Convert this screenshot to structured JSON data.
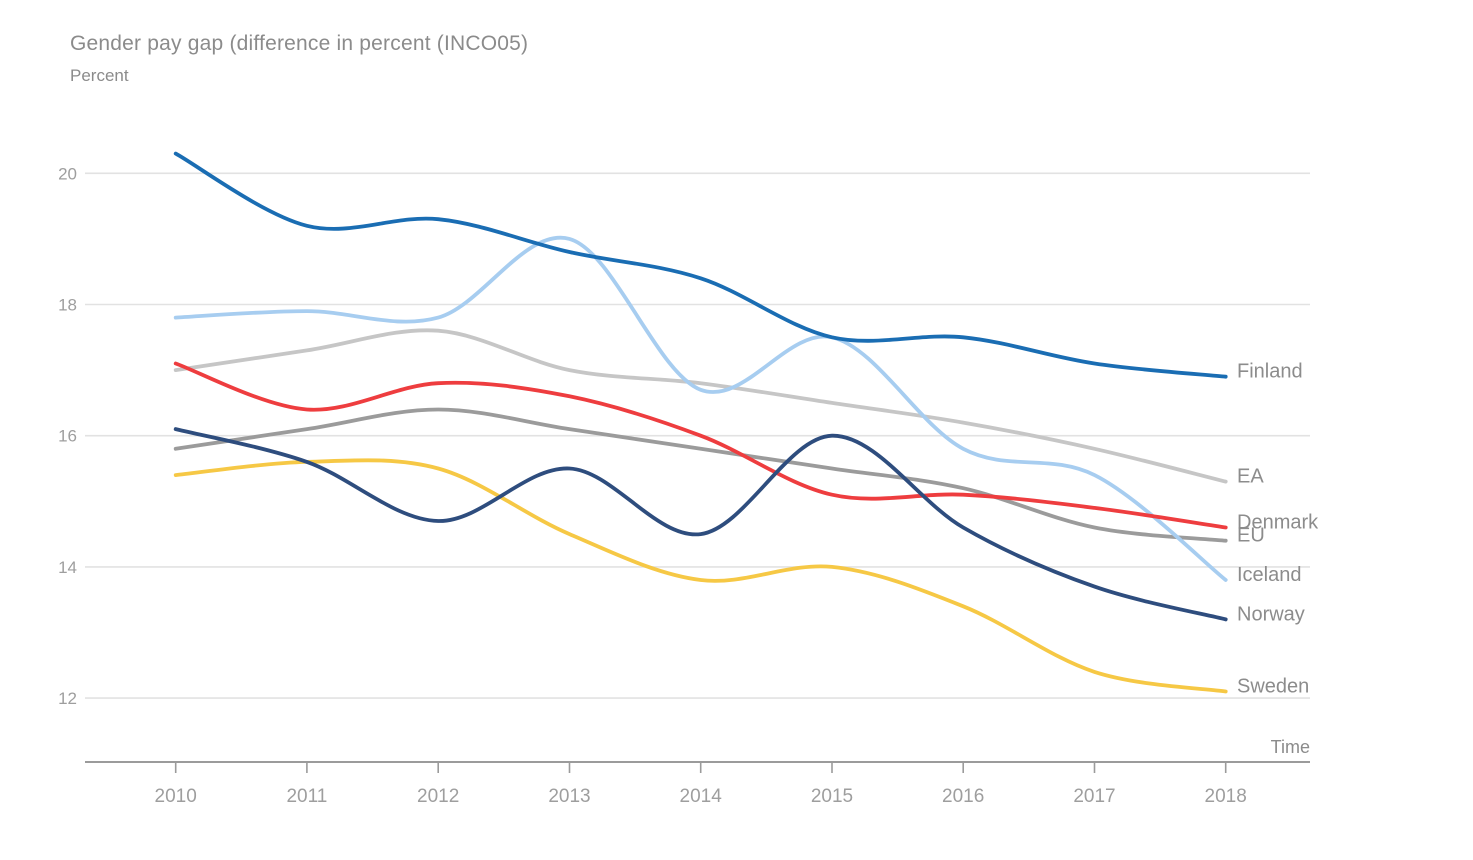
{
  "title": "Gender pay gap (difference in percent (INCO05)",
  "subtitle": "Percent",
  "x_axis_label": "Time",
  "colors": {
    "background": "#ffffff",
    "title_text": "#8b8b8b",
    "tick_text": "#9e9e9e",
    "gridline": "#e2e2e2",
    "axis_line": "#9b9b9b",
    "series_label_text": "#8c8c8c"
  },
  "chart_data": {
    "type": "line",
    "x": [
      2010,
      2011,
      2012,
      2013,
      2014,
      2015,
      2016,
      2017,
      2018
    ],
    "series": [
      {
        "name": "EA",
        "color": "#c6c6c6",
        "values": [
          17.0,
          17.3,
          17.6,
          17.0,
          16.8,
          16.5,
          16.2,
          15.8,
          15.3
        ]
      },
      {
        "name": "EU",
        "color": "#9b9b9b",
        "values": [
          15.8,
          16.1,
          16.4,
          16.1,
          15.8,
          15.5,
          15.2,
          14.6,
          14.4
        ]
      },
      {
        "name": "Iceland",
        "color": "#a7cdf0",
        "values": [
          17.8,
          17.9,
          17.8,
          19.0,
          16.7,
          17.5,
          15.8,
          15.4,
          13.8
        ]
      },
      {
        "name": "Sweden",
        "color": "#f6c845",
        "values": [
          15.4,
          15.6,
          15.5,
          14.5,
          13.8,
          14.0,
          13.4,
          12.4,
          12.1
        ]
      },
      {
        "name": "Denmark",
        "color": "#ee3d3f",
        "values": [
          17.1,
          16.4,
          16.8,
          16.6,
          16.0,
          15.1,
          15.1,
          14.9,
          14.6
        ]
      },
      {
        "name": "Norway",
        "color": "#2e4d7e",
        "values": [
          16.1,
          15.6,
          14.7,
          15.5,
          14.5,
          16.0,
          14.6,
          13.7,
          13.2
        ]
      },
      {
        "name": "Finland",
        "color": "#1a6db3",
        "values": [
          20.3,
          19.2,
          19.3,
          18.8,
          18.4,
          17.5,
          17.5,
          17.1,
          16.9
        ]
      }
    ],
    "title": "Gender pay gap (difference in percent (INCO05)",
    "xlabel": "Time",
    "ylabel": "Percent",
    "yticks": [
      12,
      14,
      16,
      18,
      20
    ],
    "ylim": [
      11.0,
      20.6
    ],
    "grid": true,
    "legend_position": "right-end-labels"
  }
}
